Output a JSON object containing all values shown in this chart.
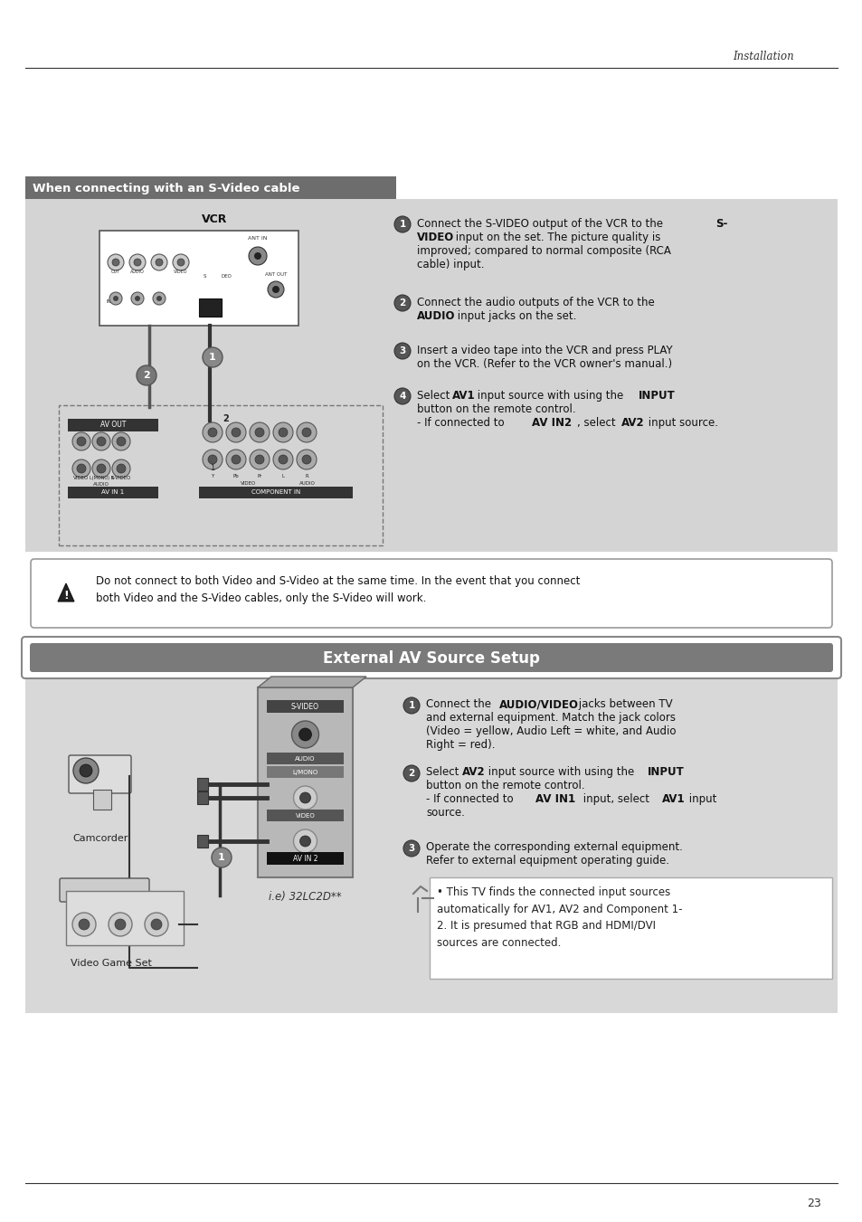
{
  "page_bg": "#ffffff",
  "header_text": "Installation",
  "page_number": "23",
  "section1_header_text": "When connecting with an S-Video cable",
  "section1_header_bg": "#6d6d6d",
  "section1_bg": "#d4d4d4",
  "vcr_label": "VCR",
  "warning_text": "Do not connect to both Video and S-Video at the same time. In the event that you connect\nboth Video and the S-Video cables, only the S-Video will work.",
  "section2_header_text": "External AV Source Setup",
  "section2_header_bg": "#7a7a7a",
  "section2_bg": "#d8d8d8",
  "note_text": "• This TV finds the connected input sources\nautomatically for AV1, AV2 and Component 1-\n2. It is presumed that RGB and HDMI/DVI\nsources are connected.",
  "camcorder_label": "Camcorder",
  "video_game_label": "Video Game Set",
  "ie_label": "i.e) 32LC2D**"
}
